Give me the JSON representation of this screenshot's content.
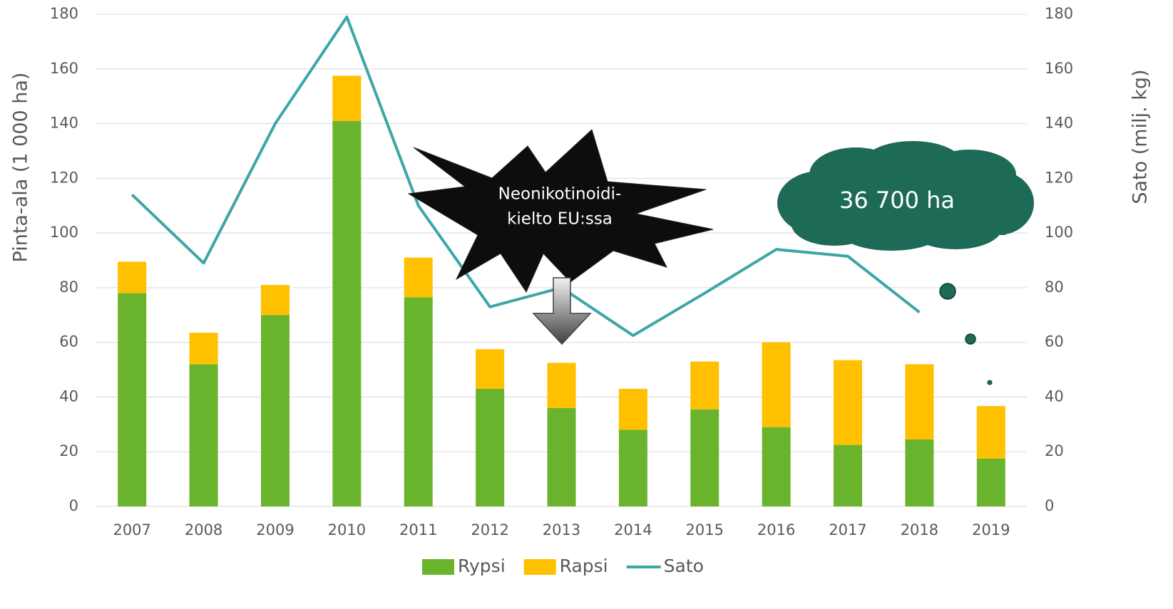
{
  "chart_data": {
    "type": "bar",
    "categories": [
      "2007",
      "2008",
      "2009",
      "2010",
      "2011",
      "2012",
      "2013",
      "2014",
      "2015",
      "2016",
      "2017",
      "2018",
      "2019"
    ],
    "series": [
      {
        "name": "Rypsi",
        "color": "#6ab42d",
        "stacked": true,
        "values": [
          78,
          52,
          70,
          141,
          76.5,
          43,
          36,
          28,
          35.5,
          29,
          22.5,
          24.5,
          17.5
        ]
      },
      {
        "name": "Rapsi",
        "color": "#ffc000",
        "stacked": true,
        "values": [
          11.5,
          11.5,
          11,
          16.5,
          14.5,
          14.5,
          16.5,
          15,
          17.5,
          31,
          31,
          27.5,
          19.2
        ]
      },
      {
        "name": "Sato",
        "color": "#3ea6a6",
        "type": "line",
        "axis": "y2",
        "values": [
          114,
          89,
          140,
          179,
          110,
          73,
          80,
          62.5,
          78,
          94,
          91.5,
          71,
          null
        ]
      }
    ],
    "ylabel": "Pinta-ala (1 000 ha)",
    "y2label": "Sato (milj. kg)",
    "ylim": [
      0,
      180
    ],
    "yticks": [
      0,
      20,
      40,
      60,
      80,
      100,
      120,
      140,
      160,
      180
    ],
    "y2lim": [
      0,
      180
    ],
    "y2ticks": [
      0,
      20,
      40,
      60,
      80,
      100,
      120,
      140,
      160,
      180
    ],
    "grid": true,
    "legend": "bottom",
    "annotations": {
      "ban": [
        "Neonikotinoidi-",
        "kielto EU:ssa"
      ],
      "cloud": "36 700 ha"
    }
  }
}
